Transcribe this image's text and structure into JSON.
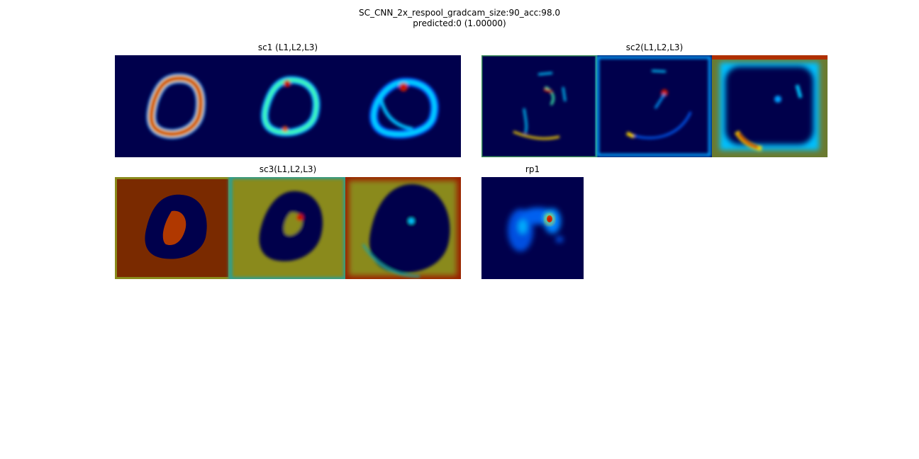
{
  "figure": {
    "title_line1": "SC_CNN_2x_respool_gradcam_size:90_acc:98.0",
    "title_line2": "predicted:0 (1.00000)"
  },
  "panels": [
    {
      "id": "sc1",
      "title": "sc1 (L1,L2,L3)"
    },
    {
      "id": "sc2",
      "title": "sc2(L1,L2,L3)"
    },
    {
      "id": "sc3",
      "title": "sc3(L1,L2,L3)"
    },
    {
      "id": "rp1",
      "title": "rp1"
    }
  ],
  "colors": {
    "jet_dark_blue": "#00004c",
    "jet_cyan": "#00c8ff",
    "jet_red": "#c81400",
    "jet_olive": "#8a8a1c",
    "jet_dark_red": "#7a2a00"
  }
}
